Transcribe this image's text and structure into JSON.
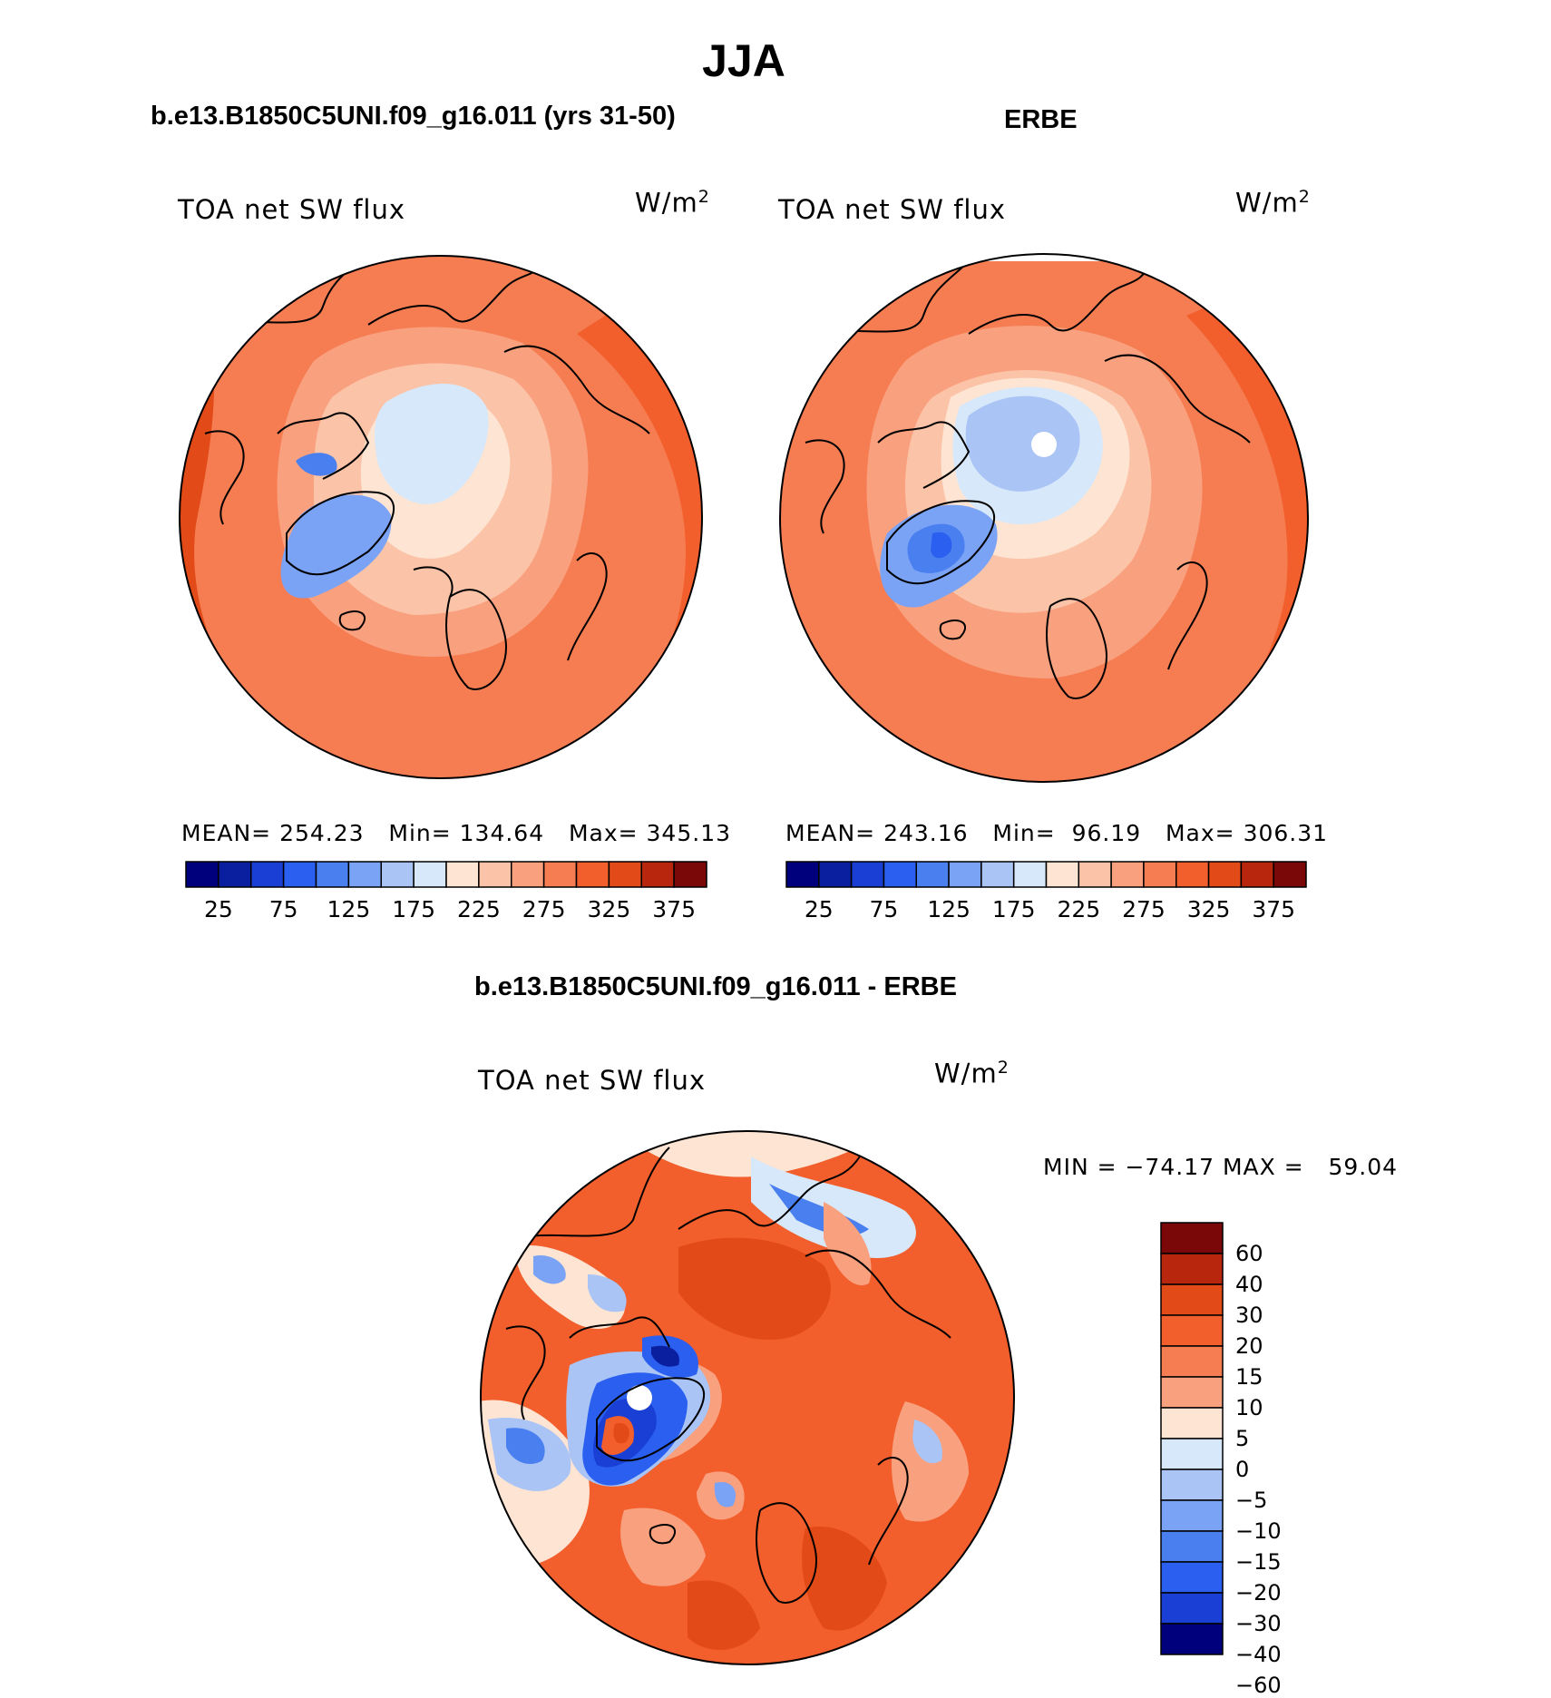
{
  "title": "JJA",
  "panels": {
    "model": {
      "title": "b.e13.B1850C5UNI.f09_g16.011 (yrs 31-50)",
      "variable": "TOA net SW flux",
      "units": "W/m",
      "units_exp": "2",
      "stats": "MEAN= 254.23   Min= 134.64   Max= 345.13"
    },
    "obs": {
      "title": "ERBE",
      "variable": "TOA net SW flux",
      "units": "W/m",
      "units_exp": "2",
      "stats": "MEAN= 243.16   Min=  96.19   Max= 306.31"
    },
    "diff": {
      "title": "b.e13.B1850C5UNI.f09_g16.011 - ERBE",
      "variable": "TOA net SW flux",
      "units": "W/m",
      "units_exp": "2",
      "stats": "MIN = −74.17 MAX =   59.04"
    }
  },
  "colorbar_main": {
    "colors": [
      "#00007d",
      "#0a1fa0",
      "#1a3fd4",
      "#2a5ff0",
      "#4a7ff0",
      "#7aa2f5",
      "#a9c4f5",
      "#d6e8fa",
      "#fde4d3",
      "#fbc4a8",
      "#f9a07f",
      "#f67d52",
      "#f25e2c",
      "#e24a18",
      "#b8260e",
      "#7a0808"
    ],
    "labels": [
      "25",
      "75",
      "125",
      "175",
      "225",
      "275",
      "325",
      "375"
    ]
  },
  "colorbar_diff": {
    "colors": [
      "#7a0808",
      "#b8260e",
      "#e24a18",
      "#f25e2c",
      "#f67d52",
      "#f9a07f",
      "#fde4d3",
      "#d6e8fa",
      "#a9c4f5",
      "#7aa2f5",
      "#4a7ff0",
      "#2a5ff0",
      "#1a3fd4",
      "#00007d"
    ],
    "labels": [
      "60",
      "40",
      "30",
      "20",
      "15",
      "10",
      "5",
      "0",
      "−5",
      "−10",
      "−15",
      "−20",
      "−30",
      "−40",
      "−60"
    ]
  },
  "colors": {
    "land_outline": "#000000",
    "ocean_high": "#f25e2c",
    "arctic_low_model": "#d6e8fa",
    "arctic_low_obs": "#a9c4f5"
  }
}
